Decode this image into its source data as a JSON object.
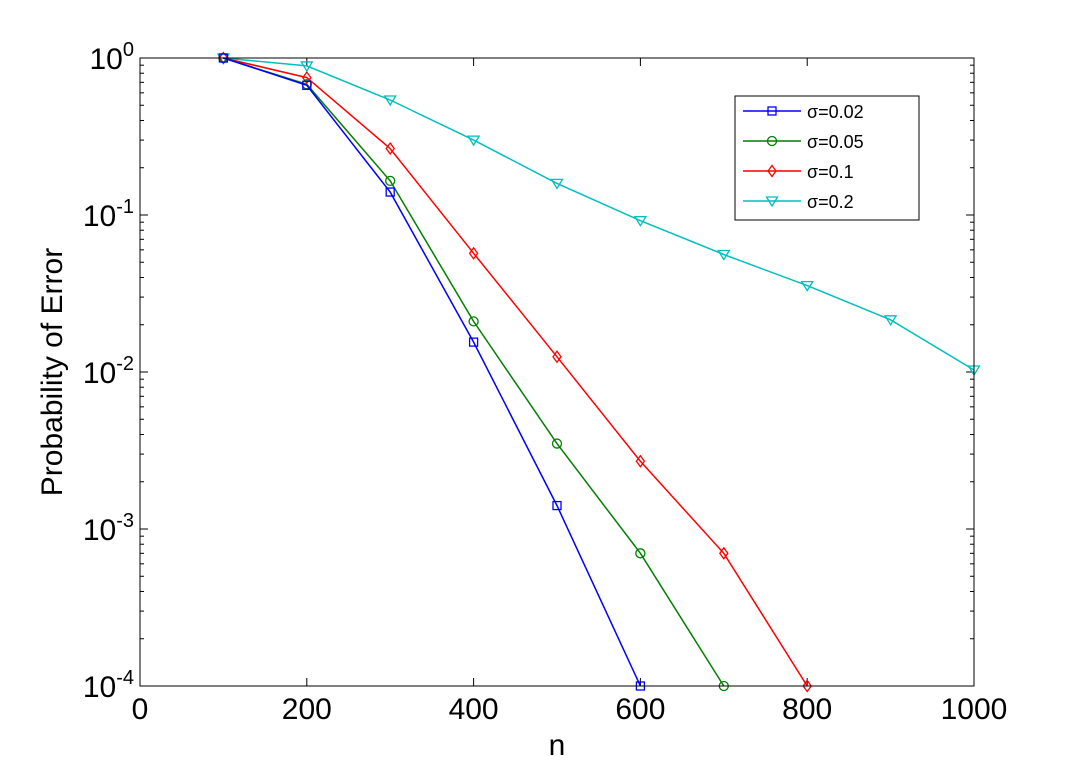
{
  "chart_data": {
    "type": "line",
    "title": "",
    "xlabel": "n",
    "ylabel": "Probability of Error",
    "xlim": [
      0,
      1000
    ],
    "ylim": [
      0.0001,
      1
    ],
    "yscale": "log",
    "xticks": [
      0,
      200,
      400,
      600,
      800,
      1000
    ],
    "xtick_labels": [
      "0",
      "200",
      "400",
      "600",
      "800",
      "1000"
    ],
    "yticks": [
      1,
      0.1,
      0.01,
      0.001,
      0.0001
    ],
    "ytick_labels": [
      {
        "base": "10",
        "exp": "0"
      },
      {
        "base": "10",
        "exp": "-1"
      },
      {
        "base": "10",
        "exp": "-2"
      },
      {
        "base": "10",
        "exp": "-3"
      },
      {
        "base": "10",
        "exp": "-4"
      }
    ],
    "grid": false,
    "legend_position": "top-right",
    "series": [
      {
        "name": "σ=0.02",
        "color": "#0000ff",
        "marker": "square",
        "x": [
          100,
          200,
          300,
          400,
          500,
          600
        ],
        "y": [
          1.0,
          0.67,
          0.14,
          0.0155,
          0.00141,
          0.0001
        ]
      },
      {
        "name": "σ=0.05",
        "color": "#007f00",
        "marker": "circle",
        "x": [
          100,
          200,
          300,
          400,
          500,
          600,
          700
        ],
        "y": [
          1.0,
          0.68,
          0.165,
          0.021,
          0.0035,
          0.0007,
          0.0001
        ]
      },
      {
        "name": "σ=0.1",
        "color": "#ff0000",
        "marker": "diamond",
        "x": [
          100,
          200,
          300,
          400,
          500,
          600,
          700,
          800
        ],
        "y": [
          1.0,
          0.75,
          0.265,
          0.057,
          0.0125,
          0.0027,
          0.0007,
          0.0001
        ]
      },
      {
        "name": "σ=0.2",
        "color": "#00bfbf",
        "marker": "triangle-down",
        "x": [
          100,
          200,
          300,
          400,
          500,
          600,
          700,
          800,
          900,
          1000
        ],
        "y": [
          1.0,
          0.89,
          0.54,
          0.3,
          0.159,
          0.092,
          0.056,
          0.0355,
          0.0215,
          0.0103
        ]
      }
    ]
  }
}
